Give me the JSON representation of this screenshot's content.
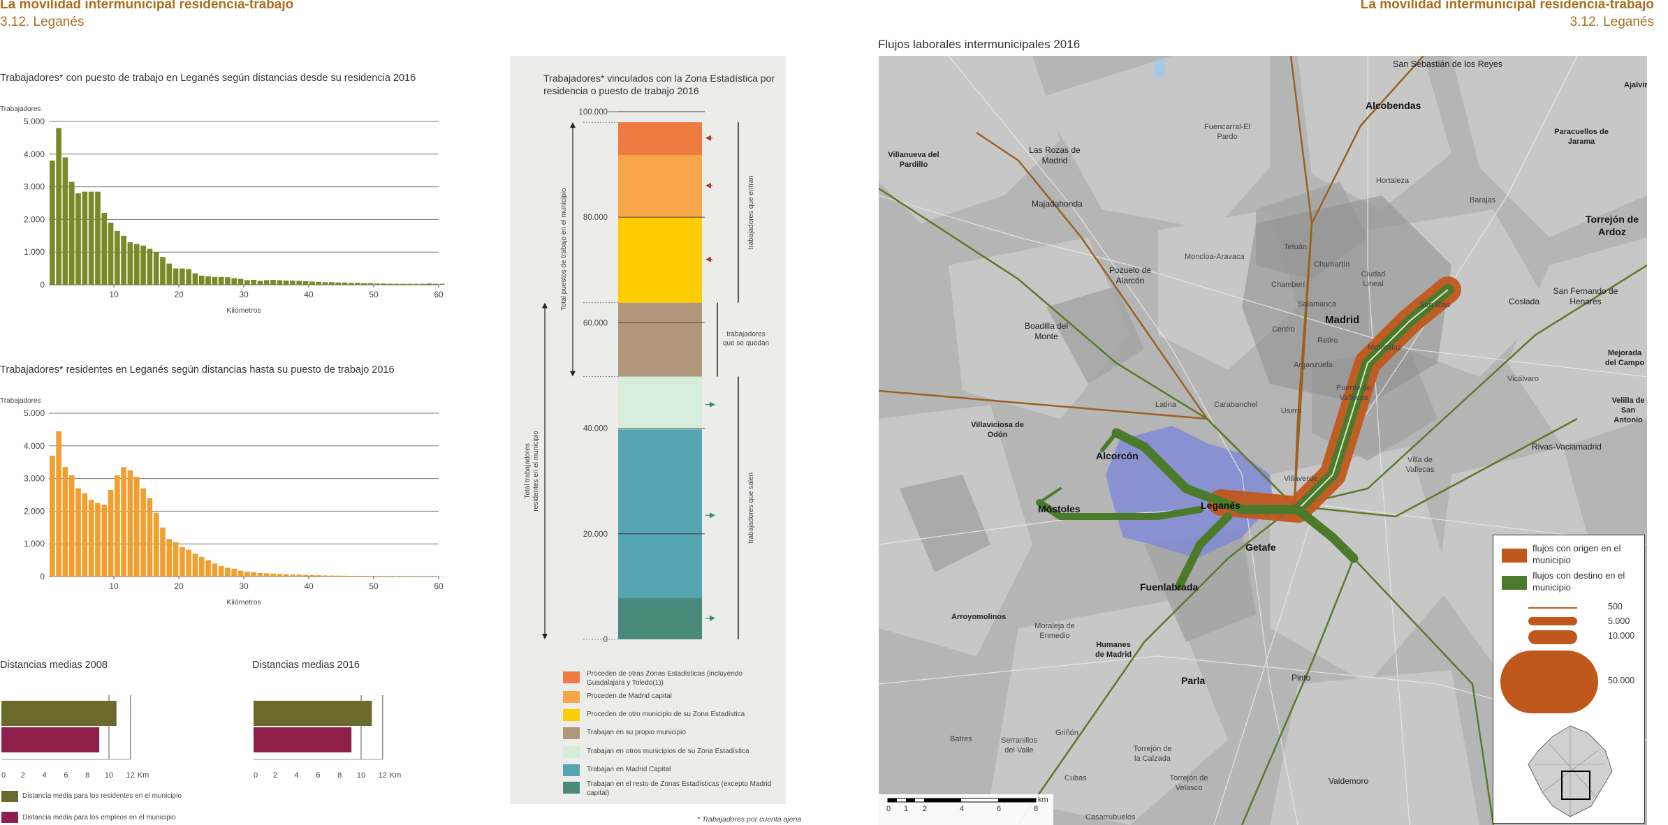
{
  "header": {
    "title_left": "La movilidad intermunicipal residencia-trabajo",
    "subtitle_left": "3.12. Leganés",
    "title_right": "La movilidad intermunicipal residencia-trabajo",
    "subtitle_right": "3.12. Leganés"
  },
  "chart_data": [
    {
      "type": "bar",
      "title": "Trabajadores* con puesto de trabajo en Leganés según distancias desde su residencia 2016",
      "ylabel": "Trabajadores",
      "xlabel": "Kilómetros",
      "ylim": [
        0,
        5000
      ],
      "y_ticks": [
        "0",
        "1.000",
        "2.000",
        "3.000",
        "4.000",
        "5.000"
      ],
      "x_ticks": [
        "10",
        "20",
        "30",
        "40",
        "50",
        "60"
      ],
      "color": "#7a8a28",
      "values": [
        3800,
        4800,
        3900,
        3150,
        2800,
        2850,
        2850,
        2850,
        2200,
        1900,
        1650,
        1500,
        1300,
        1250,
        1200,
        1100,
        1000,
        850,
        650,
        500,
        500,
        480,
        350,
        280,
        260,
        240,
        240,
        230,
        200,
        180,
        140,
        150,
        120,
        140,
        150,
        140,
        130,
        130,
        120,
        110,
        100,
        90,
        80,
        80,
        70,
        70,
        60,
        60,
        50,
        50,
        40,
        40,
        35,
        30,
        30,
        30,
        30,
        30,
        40,
        30,
        30
      ]
    },
    {
      "type": "bar",
      "title": "Trabajadores* residentes en Leganés según distancias hasta su puesto de trabajo 2016",
      "ylabel": "Trabajadores",
      "xlabel": "Kilómetros",
      "ylim": [
        0,
        5000
      ],
      "y_ticks": [
        "0",
        "1.000",
        "2.000",
        "3.000",
        "4.000",
        "5.000"
      ],
      "x_ticks": [
        "10",
        "20",
        "30",
        "40",
        "50",
        "60"
      ],
      "color": "#f0a030",
      "values": [
        3700,
        4450,
        3350,
        3100,
        2700,
        2550,
        2350,
        2250,
        2200,
        2650,
        3100,
        3350,
        3250,
        3050,
        2700,
        2400,
        1950,
        1500,
        1150,
        1050,
        900,
        820,
        700,
        600,
        500,
        400,
        320,
        270,
        240,
        180,
        150,
        130,
        110,
        100,
        90,
        80,
        70,
        60,
        55,
        50,
        45,
        40,
        35,
        30,
        28,
        25,
        22,
        20,
        18,
        15,
        14,
        12,
        12,
        10,
        10,
        10,
        8,
        8,
        8,
        8,
        8
      ]
    },
    {
      "type": "bar",
      "orientation": "horizontal",
      "title": "Distancias medias 2008",
      "x_ticks": [
        "0",
        "2",
        "4",
        "6",
        "8",
        "10",
        "12"
      ],
      "x_unit": "Km",
      "xlim": [
        0,
        12
      ],
      "series": [
        {
          "name": "Distancia media para los residentes en el municipio",
          "value": 10.7,
          "color": "#6b6a2c"
        },
        {
          "name": "Distancia media para los empleos en el municipio",
          "value": 9.1,
          "color": "#8e1f4c"
        }
      ]
    },
    {
      "type": "bar",
      "orientation": "horizontal",
      "title": "Distancias medias 2016",
      "x_ticks": [
        "0",
        "2",
        "4",
        "6",
        "8",
        "10",
        "12"
      ],
      "x_unit": "Km",
      "xlim": [
        0,
        12
      ],
      "series": [
        {
          "name": "Distancia media para los residentes en el municipio",
          "value": 11.0,
          "color": "#6b6a2c"
        },
        {
          "name": "Distancia media para los empleos en el municipio",
          "value": 9.1,
          "color": "#8e1f4c"
        }
      ]
    },
    {
      "type": "bar",
      "orientation": "stacked-vertical",
      "title": "Trabajadores* vinculados con la Zona Estadística por residencia o puesto de trabajo 2016",
      "ylim": [
        0,
        100000
      ],
      "y_ticks": [
        "0",
        "20.000",
        "40.000",
        "60.000",
        "80.000",
        "100.000"
      ],
      "segments": [
        {
          "label": "Trabajan en el resto de Zonas Estadísticas (excepto Madrid capital)",
          "from": 0,
          "to": 7800,
          "color": "#4a8a7c"
        },
        {
          "label": "Trabajan en Madrid Capital",
          "from": 7800,
          "to": 39800,
          "color": "#55a5b2"
        },
        {
          "label": "Trabajan en otros municipios de su Zona Estadística",
          "from": 39800,
          "to": 49800,
          "color": "#d8ecdc"
        },
        {
          "label": "Trabajan en su propio municipio",
          "from": 49800,
          "to": 63800,
          "color": "#b0967a"
        },
        {
          "label": "Proceden de otro municipio de su Zona Estadística",
          "from": 63800,
          "to": 80000,
          "color": "#ffcc00"
        },
        {
          "label": "Proceden de Madrid capital",
          "from": 80000,
          "to": 91800,
          "color": "#f7a64a"
        },
        {
          "label": "Proceden de otras Zonas Estadísticas (incluyendo Guadalajara y Toledo(1))",
          "from": 91800,
          "to": 98000,
          "color": "#ef7b42"
        }
      ],
      "annotations": {
        "total_jobs": "Total puestos de trabajo en el municipio",
        "total_residents": "Total trabajadores residentes en el municipio",
        "entering": "trabajadores que entran",
        "staying": "trabajadores que se quedan",
        "leaving": "trabajadores que salen"
      }
    }
  ],
  "footnote": "* Trabajadores por cuenta ajena",
  "map": {
    "title": "Flujos laborales intermunicipales 2016",
    "places": [
      {
        "name": "San Sebastián de los Reyes",
        "type": "big-small"
      },
      {
        "name": "Alcobendas",
        "type": "mid"
      },
      {
        "name": "Ajalvir",
        "type": "sm"
      },
      {
        "name": "Fuencarral-El Pardo",
        "type": "dist"
      },
      {
        "name": "Las Rozas de Madrid",
        "type": "norm"
      },
      {
        "name": "Villanueva del Pardillo",
        "type": "sm"
      },
      {
        "name": "Paracuellos de Jarama",
        "type": "sm"
      },
      {
        "name": "Hortaleza",
        "type": "dist"
      },
      {
        "name": "Barajas",
        "type": "dist"
      },
      {
        "name": "Majadahonda",
        "type": "norm"
      },
      {
        "name": "Torrejón de Ardoz",
        "type": "mid"
      },
      {
        "name": "Moncloa-Aravaca",
        "type": "dist"
      },
      {
        "name": "Tetuán",
        "type": "dist"
      },
      {
        "name": "Chamartín",
        "type": "dist"
      },
      {
        "name": "Pozuelo de Alarcón",
        "type": "norm"
      },
      {
        "name": "Ciudad Lineal",
        "type": "dist"
      },
      {
        "name": "Chamberí",
        "type": "dist"
      },
      {
        "name": "San Fernando de Henares",
        "type": "norm"
      },
      {
        "name": "Coslada",
        "type": "norm"
      },
      {
        "name": "San Blas",
        "type": "dist"
      },
      {
        "name": "Madrid",
        "type": "big"
      },
      {
        "name": "Boadilla del Monte",
        "type": "norm"
      },
      {
        "name": "Centro",
        "type": "dist"
      },
      {
        "name": "Retiro",
        "type": "dist"
      },
      {
        "name": "Moratalaz",
        "type": "dist"
      },
      {
        "name": "Mejorada del Campo",
        "type": "sm"
      },
      {
        "name": "Arganzuela",
        "type": "dist"
      },
      {
        "name": "Salamanca",
        "type": "dist"
      },
      {
        "name": "Vicálvaro",
        "type": "dist"
      },
      {
        "name": "Puente de Vallecas",
        "type": "dist"
      },
      {
        "name": "Latina",
        "type": "dist"
      },
      {
        "name": "Carabanchel",
        "type": "dist"
      },
      {
        "name": "Usera",
        "type": "dist"
      },
      {
        "name": "Velilla de San Antonio",
        "type": "sm"
      },
      {
        "name": "Villaviciosa de Odón",
        "type": "sm"
      },
      {
        "name": "Rivas-Vaciamadrid",
        "type": "norm"
      },
      {
        "name": "Alcorcón",
        "type": "mid"
      },
      {
        "name": "Villa de Vallecas",
        "type": "dist"
      },
      {
        "name": "Villaverde",
        "type": "dist"
      },
      {
        "name": "Móstoles",
        "type": "mid"
      },
      {
        "name": "Leganés",
        "type": "mid"
      },
      {
        "name": "Getafe",
        "type": "mid"
      },
      {
        "name": "Fuenlabrada",
        "type": "mid"
      },
      {
        "name": "Arroyomolinos",
        "type": "sm"
      },
      {
        "name": "Moraleja de Enmedio",
        "type": "dist"
      },
      {
        "name": "Humanes de Madrid",
        "type": "sm"
      },
      {
        "name": "Parla",
        "type": "mid"
      },
      {
        "name": "Pinto",
        "type": "norm"
      },
      {
        "name": "Griñón",
        "type": "dist"
      },
      {
        "name": "Batres",
        "type": "dist"
      },
      {
        "name": "Serranillos del Valle",
        "type": "dist"
      },
      {
        "name": "Torrejón de la Calzada",
        "type": "dist"
      },
      {
        "name": "Cubas",
        "type": "dist"
      },
      {
        "name": "Torrejón de Velasco",
        "type": "dist"
      },
      {
        "name": "Valdemoro",
        "type": "norm"
      },
      {
        "name": "Casarrubuelos",
        "type": "dist"
      }
    ],
    "legend": {
      "origin": "flujos con origen en el municipio",
      "destination": "flujos con destino en el municipio",
      "origin_color": "#c0581e",
      "destination_color": "#4a7a2a",
      "sizes": [
        "500",
        "5.000",
        "10.000",
        "50.000"
      ]
    },
    "scale": {
      "ticks": [
        "0",
        "1",
        "2",
        "4",
        "6",
        "8"
      ],
      "unit": "km"
    }
  }
}
